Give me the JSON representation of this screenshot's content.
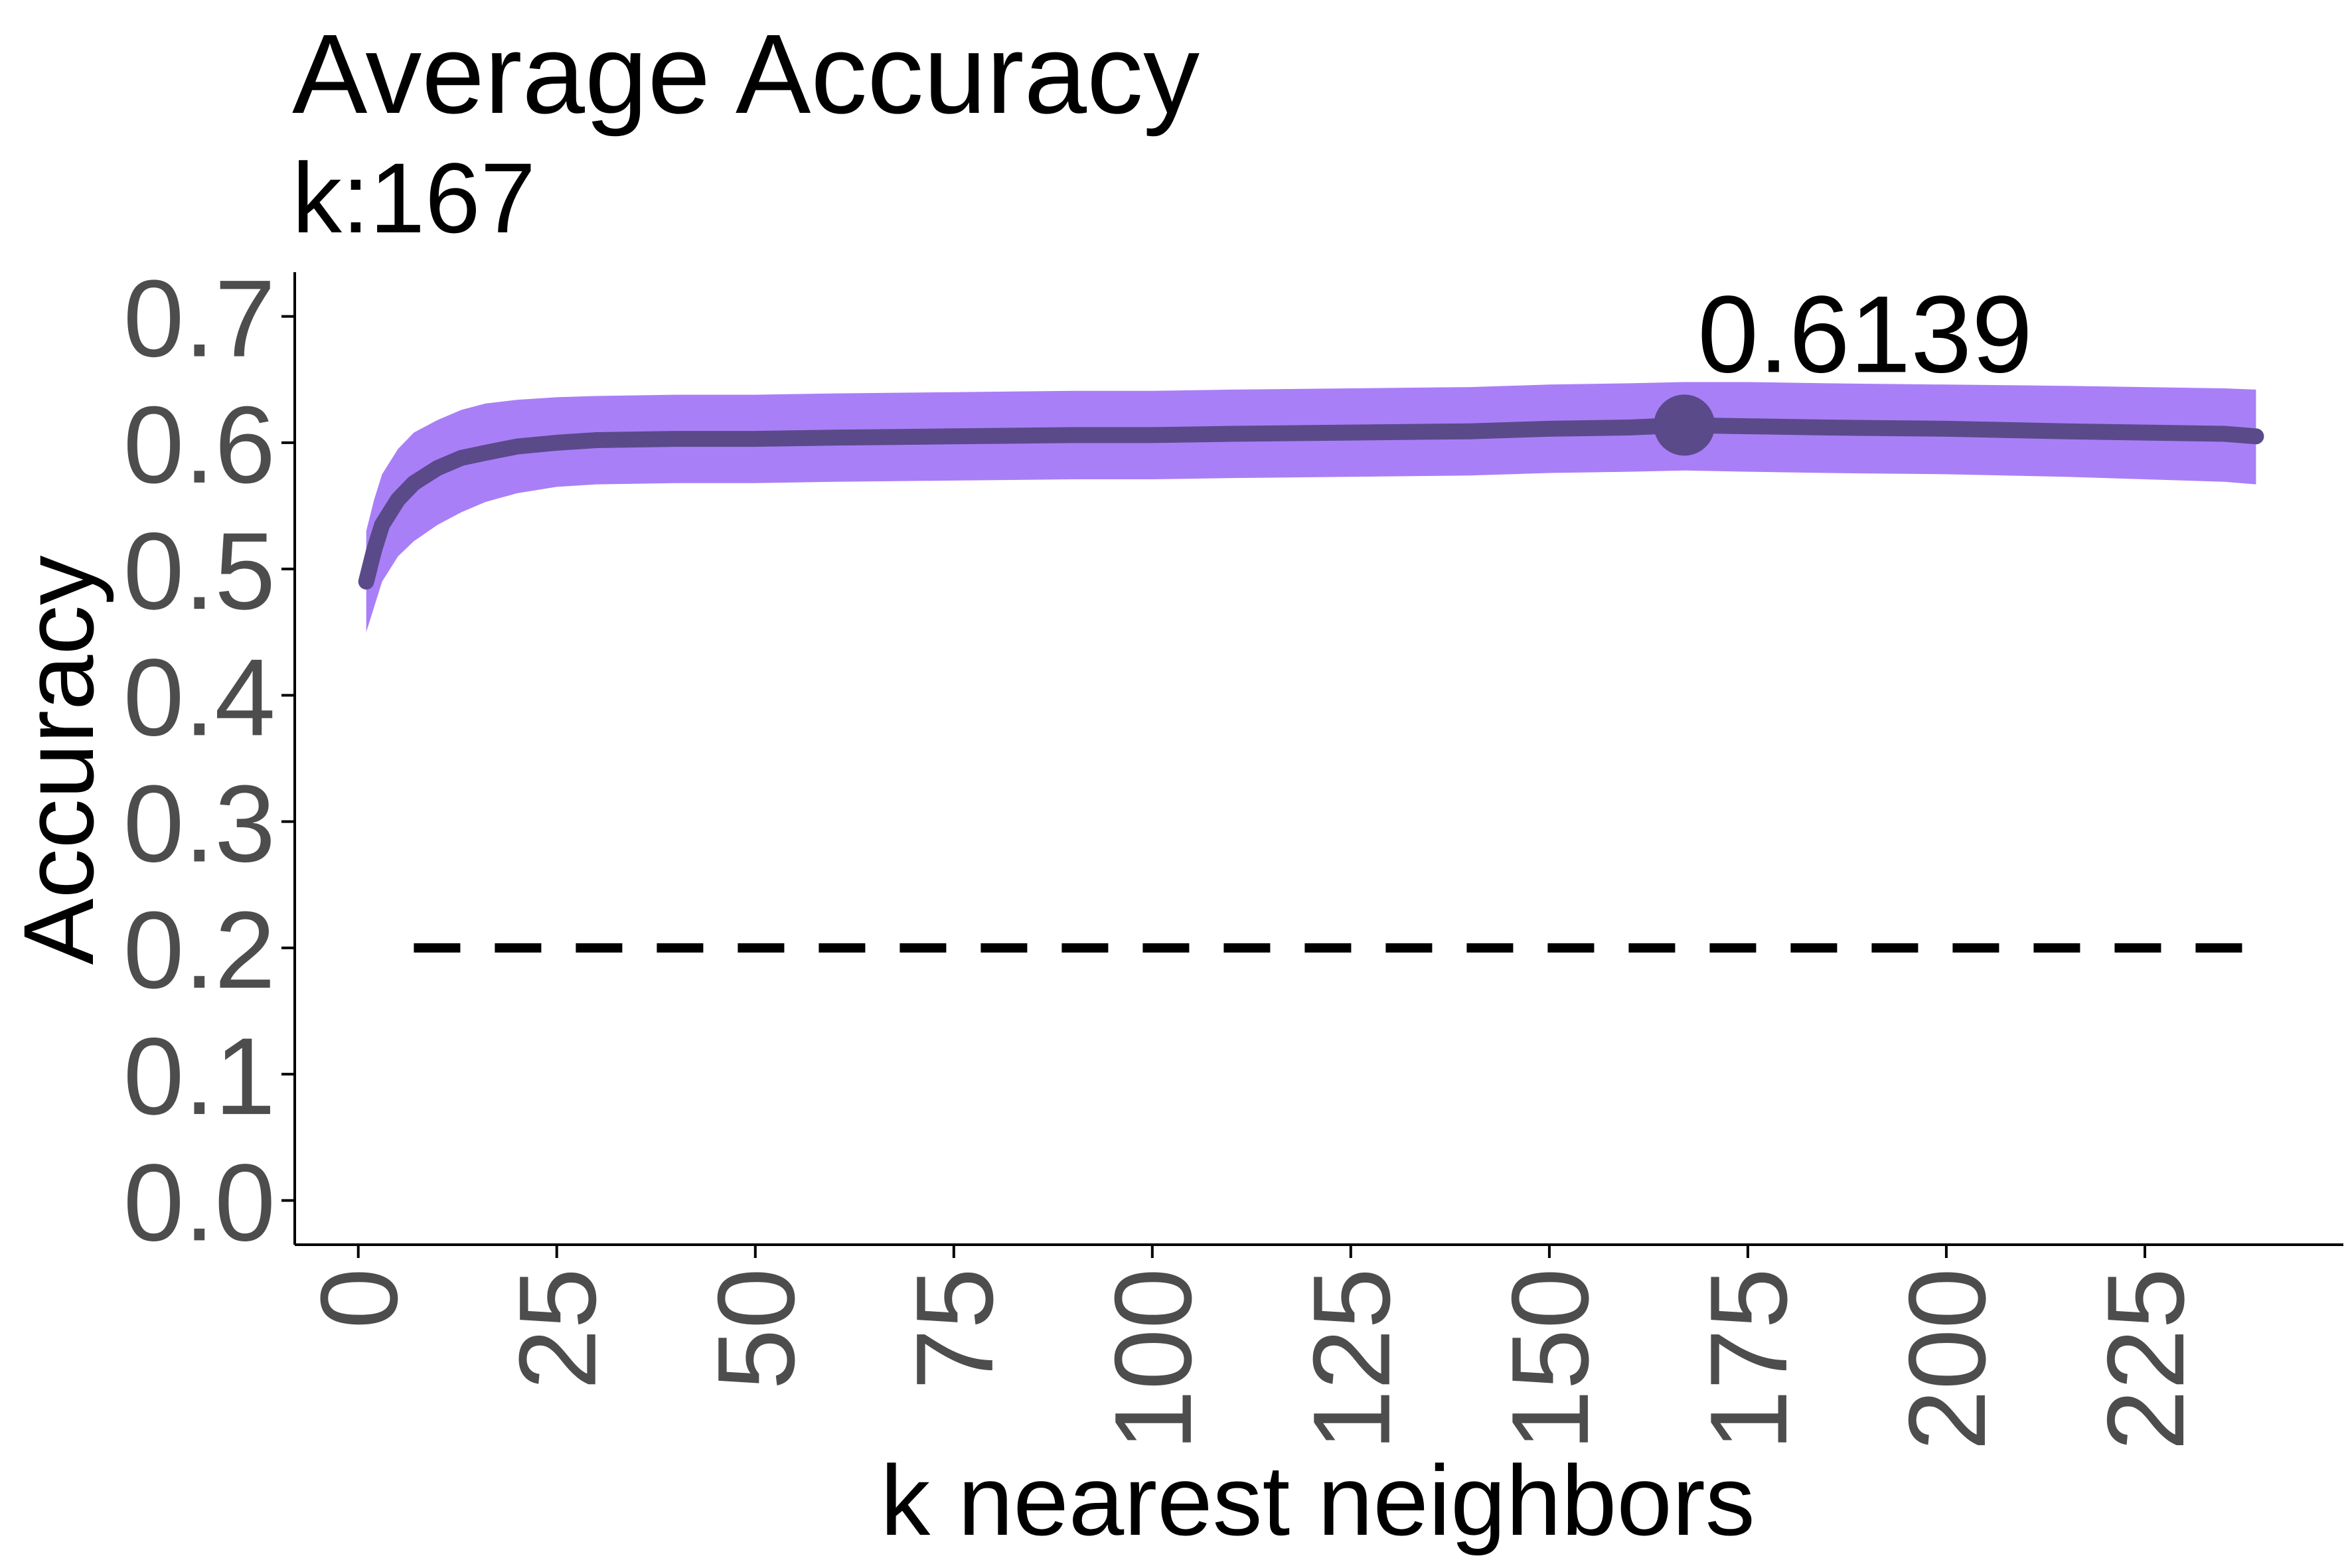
{
  "chart_data": {
    "type": "line",
    "title": "Average Accuracy",
    "subtitle": "k:167",
    "xlabel": "k nearest neighbors",
    "ylabel": "Accuracy",
    "xlim": [
      -8,
      250
    ],
    "ylim": [
      -0.035,
      0.735
    ],
    "x_ticks": [
      0,
      25,
      50,
      75,
      100,
      125,
      150,
      175,
      200,
      225
    ],
    "x_tick_labels": [
      "0",
      "25",
      "50",
      "75",
      "100",
      "125",
      "150",
      "175",
      "200",
      "225"
    ],
    "y_ticks": [
      0.0,
      0.1,
      0.2,
      0.3,
      0.4,
      0.5,
      0.6,
      0.7
    ],
    "y_tick_labels": [
      "0.0",
      "0.1",
      "0.2",
      "0.3",
      "0.4",
      "0.5",
      "0.6",
      "0.7"
    ],
    "grid": false,
    "series": [
      {
        "x": [
          1,
          2,
          3,
          5,
          7,
          10,
          13,
          16,
          20,
          25,
          30,
          40,
          50,
          60,
          75,
          90,
          100,
          110,
          125,
          140,
          150,
          160,
          167,
          175,
          185,
          200,
          215,
          225,
          235,
          239
        ],
        "y": [
          0.49,
          0.515,
          0.535,
          0.555,
          0.568,
          0.58,
          0.588,
          0.592,
          0.597,
          0.6,
          0.602,
          0.603,
          0.603,
          0.604,
          0.605,
          0.606,
          0.606,
          0.607,
          0.608,
          0.609,
          0.611,
          0.612,
          0.6139,
          0.613,
          0.612,
          0.611,
          0.609,
          0.608,
          0.607,
          0.605
        ],
        "lower": [
          0.45,
          0.47,
          0.49,
          0.51,
          0.522,
          0.535,
          0.545,
          0.553,
          0.56,
          0.565,
          0.567,
          0.568,
          0.568,
          0.569,
          0.57,
          0.571,
          0.571,
          0.572,
          0.573,
          0.574,
          0.576,
          0.577,
          0.578,
          0.577,
          0.576,
          0.575,
          0.573,
          0.571,
          0.569,
          0.567
        ],
        "upper": [
          0.53,
          0.555,
          0.575,
          0.595,
          0.608,
          0.618,
          0.626,
          0.631,
          0.634,
          0.636,
          0.637,
          0.638,
          0.638,
          0.639,
          0.64,
          0.641,
          0.641,
          0.642,
          0.643,
          0.644,
          0.646,
          0.647,
          0.648,
          0.648,
          0.647,
          0.646,
          0.645,
          0.644,
          0.643,
          0.642
        ]
      }
    ],
    "highlight_point": {
      "x": 167,
      "y": 0.6139,
      "label": "0.6139"
    },
    "reference_line": {
      "y": 0.2,
      "style": "dashed",
      "x_range": [
        7,
        239
      ]
    },
    "colors": {
      "line": "#5a4a8a",
      "band": "#a97ff8",
      "reference": "#000000",
      "tick_text": "#4d4d4d"
    }
  }
}
